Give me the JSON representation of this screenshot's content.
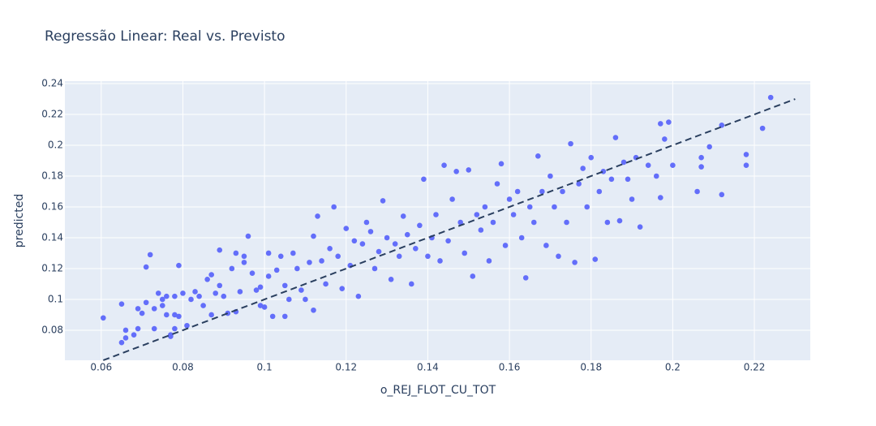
{
  "chart_data": {
    "type": "scatter",
    "title": "Regressão Linear: Real vs. Previsto",
    "x_label": "o_REJ_FLOT_CU_TOT",
    "y_label": "predicted",
    "xlim": [
      0.0511,
      0.2337
    ],
    "ylim": [
      0.0605,
      0.2416
    ],
    "xticks": [
      0.06,
      0.08,
      0.1,
      0.12,
      0.14,
      0.16,
      0.18,
      0.2,
      0.22
    ],
    "yticks": [
      0.08,
      0.1,
      0.12,
      0.14,
      0.16,
      0.18,
      0.2,
      0.22,
      0.24
    ],
    "grid": true,
    "series": [
      {
        "type": "scatter",
        "color": "#636efa",
        "x": [
          0.0605,
          0.065,
          0.065,
          0.066,
          0.066,
          0.068,
          0.069,
          0.069,
          0.07,
          0.071,
          0.071,
          0.072,
          0.073,
          0.073,
          0.074,
          0.075,
          0.075,
          0.076,
          0.076,
          0.077,
          0.077,
          0.078,
          0.078,
          0.078,
          0.079,
          0.079,
          0.08,
          0.081,
          0.082,
          0.083,
          0.084,
          0.085,
          0.086,
          0.087,
          0.087,
          0.088,
          0.089,
          0.089,
          0.09,
          0.091,
          0.092,
          0.093,
          0.093,
          0.094,
          0.095,
          0.095,
          0.096,
          0.097,
          0.098,
          0.099,
          0.099,
          0.1,
          0.101,
          0.101,
          0.102,
          0.103,
          0.104,
          0.105,
          0.105,
          0.106,
          0.107,
          0.108,
          0.109,
          0.11,
          0.111,
          0.112,
          0.112,
          0.113,
          0.114,
          0.115,
          0.116,
          0.117,
          0.118,
          0.119,
          0.12,
          0.121,
          0.122,
          0.123,
          0.124,
          0.125,
          0.126,
          0.127,
          0.128,
          0.129,
          0.13,
          0.131,
          0.132,
          0.133,
          0.134,
          0.135,
          0.136,
          0.137,
          0.138,
          0.139,
          0.14,
          0.141,
          0.142,
          0.143,
          0.144,
          0.145,
          0.146,
          0.147,
          0.148,
          0.149,
          0.15,
          0.151,
          0.152,
          0.153,
          0.154,
          0.155,
          0.156,
          0.157,
          0.158,
          0.159,
          0.16,
          0.161,
          0.162,
          0.163,
          0.164,
          0.165,
          0.166,
          0.167,
          0.168,
          0.169,
          0.17,
          0.171,
          0.172,
          0.173,
          0.174,
          0.175,
          0.176,
          0.177,
          0.178,
          0.179,
          0.18,
          0.181,
          0.182,
          0.183,
          0.184,
          0.185,
          0.186,
          0.187,
          0.188,
          0.189,
          0.19,
          0.191,
          0.192,
          0.194,
          0.196,
          0.197,
          0.197,
          0.198,
          0.199,
          0.2,
          0.206,
          0.207,
          0.207,
          0.209,
          0.212,
          0.212,
          0.218,
          0.218,
          0.222,
          0.224
        ],
        "values": [
          0.088,
          0.097,
          0.072,
          0.08,
          0.075,
          0.077,
          0.081,
          0.094,
          0.091,
          0.121,
          0.098,
          0.129,
          0.094,
          0.081,
          0.104,
          0.1,
          0.096,
          0.102,
          0.09,
          0.077,
          0.076,
          0.081,
          0.09,
          0.102,
          0.089,
          0.122,
          0.104,
          0.083,
          0.1,
          0.105,
          0.102,
          0.096,
          0.113,
          0.116,
          0.09,
          0.104,
          0.109,
          0.132,
          0.102,
          0.091,
          0.12,
          0.13,
          0.092,
          0.105,
          0.128,
          0.124,
          0.141,
          0.117,
          0.106,
          0.108,
          0.096,
          0.095,
          0.13,
          0.115,
          0.089,
          0.119,
          0.128,
          0.089,
          0.109,
          0.1,
          0.13,
          0.12,
          0.106,
          0.1,
          0.124,
          0.093,
          0.141,
          0.154,
          0.125,
          0.11,
          0.133,
          0.16,
          0.128,
          0.107,
          0.146,
          0.122,
          0.138,
          0.102,
          0.136,
          0.15,
          0.144,
          0.12,
          0.131,
          0.164,
          0.14,
          0.113,
          0.136,
          0.128,
          0.154,
          0.142,
          0.11,
          0.133,
          0.148,
          0.178,
          0.128,
          0.14,
          0.155,
          0.125,
          0.187,
          0.138,
          0.165,
          0.183,
          0.15,
          0.13,
          0.184,
          0.115,
          0.155,
          0.145,
          0.16,
          0.125,
          0.15,
          0.175,
          0.188,
          0.135,
          0.165,
          0.155,
          0.17,
          0.14,
          0.114,
          0.16,
          0.15,
          0.193,
          0.17,
          0.135,
          0.18,
          0.16,
          0.128,
          0.17,
          0.15,
          0.201,
          0.124,
          0.175,
          0.185,
          0.16,
          0.192,
          0.126,
          0.17,
          0.183,
          0.15,
          0.178,
          0.205,
          0.151,
          0.189,
          0.178,
          0.165,
          0.192,
          0.147,
          0.187,
          0.18,
          0.214,
          0.166,
          0.204,
          0.215,
          0.187,
          0.17,
          0.192,
          0.186,
          0.199,
          0.213,
          0.168,
          0.194,
          0.187,
          0.211,
          0.231
        ]
      },
      {
        "type": "line",
        "color": "#2a3f5f",
        "dash": true,
        "x": [
          0.0605,
          0.23
        ],
        "values": [
          0.0605,
          0.23
        ]
      }
    ]
  }
}
